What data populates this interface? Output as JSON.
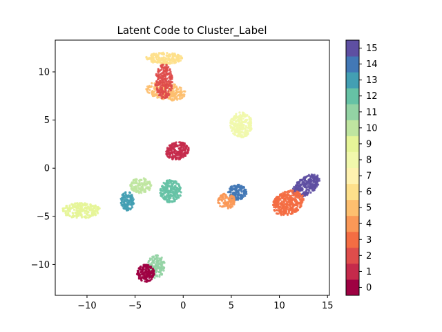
{
  "chart_data": {
    "type": "scatter",
    "title": "Latent Code to Cluster_Label",
    "xlabel": "",
    "ylabel": "",
    "xlim": [
      -13.3,
      15.2
    ],
    "ylim": [
      -13.2,
      13.3
    ],
    "x_ticks": [
      -10,
      -5,
      0,
      5,
      10,
      15
    ],
    "y_ticks": [
      10,
      5,
      0,
      -5,
      -10
    ],
    "x_tick_labels": [
      "−10",
      "−5",
      "0",
      "5",
      "10",
      "15"
    ],
    "y_tick_labels": [
      "10",
      "5",
      "0",
      "−5",
      "−10"
    ],
    "grid": false,
    "colorbar": {
      "labels": [
        "0",
        "1",
        "2",
        "3",
        "4",
        "5",
        "6",
        "7",
        "8",
        "9",
        "10",
        "11",
        "12",
        "13",
        "14",
        "15"
      ],
      "colors": [
        "#9e0142",
        "#c52a4b",
        "#df4d4b",
        "#f46d43",
        "#fa9857",
        "#fdbf6f",
        "#fee08b",
        "#fff2b0",
        "#f1f8ac",
        "#e6f598",
        "#bfe5a0",
        "#93d3a4",
        "#66c2a5",
        "#439fb3",
        "#4278b6",
        "#5e4fa2"
      ]
    },
    "clusters": [
      {
        "label": 15,
        "cx": 12.8,
        "cy": -1.8,
        "rx": 1.6,
        "ry": 0.9,
        "angle": 35,
        "n": 260
      },
      {
        "label": 14,
        "cx": 5.6,
        "cy": -2.5,
        "rx": 1.0,
        "ry": 0.8,
        "angle": 0,
        "n": 140
      },
      {
        "label": 3,
        "cx": 10.9,
        "cy": -3.6,
        "rx": 1.7,
        "ry": 1.2,
        "angle": 25,
        "n": 360
      },
      {
        "label": 4,
        "cx": 4.5,
        "cy": -3.4,
        "rx": 0.9,
        "ry": 0.8,
        "angle": 0,
        "n": 110
      },
      {
        "label": 8,
        "cx": 6.0,
        "cy": 4.5,
        "rx": 1.2,
        "ry": 1.3,
        "angle": 0,
        "n": 240
      },
      {
        "label": 1,
        "cx": -0.6,
        "cy": 1.8,
        "rx": 1.2,
        "ry": 0.9,
        "angle": 15,
        "n": 210
      },
      {
        "label": 6,
        "cx": -2.0,
        "cy": 11.4,
        "rx": 1.9,
        "ry": 0.6,
        "angle": 0,
        "n": 200
      },
      {
        "label": 5,
        "cx": -1.8,
        "cy": 8.0,
        "rx": 2.1,
        "ry": 0.9,
        "angle": -10,
        "n": 240
      },
      {
        "label": 2,
        "cx": -2.0,
        "cy": 9.0,
        "rx": 0.9,
        "ry": 1.8,
        "angle": 0,
        "n": 240
      },
      {
        "label": 12,
        "cx": -1.3,
        "cy": -2.4,
        "rx": 1.1,
        "ry": 1.2,
        "angle": 0,
        "n": 230
      },
      {
        "label": 10,
        "cx": -4.4,
        "cy": -1.8,
        "rx": 1.1,
        "ry": 0.8,
        "angle": 0,
        "n": 130
      },
      {
        "label": 13,
        "cx": -5.8,
        "cy": -3.4,
        "rx": 0.7,
        "ry": 1.0,
        "angle": 0,
        "n": 120
      },
      {
        "label": 9,
        "cx": -10.6,
        "cy": -4.4,
        "rx": 2.0,
        "ry": 0.8,
        "angle": 0,
        "n": 240
      },
      {
        "label": 11,
        "cx": -2.8,
        "cy": -10.2,
        "rx": 0.9,
        "ry": 1.2,
        "angle": 0,
        "n": 150
      },
      {
        "label": 0,
        "cx": -3.9,
        "cy": -10.9,
        "rx": 0.9,
        "ry": 0.9,
        "angle": 0,
        "n": 160
      }
    ]
  }
}
